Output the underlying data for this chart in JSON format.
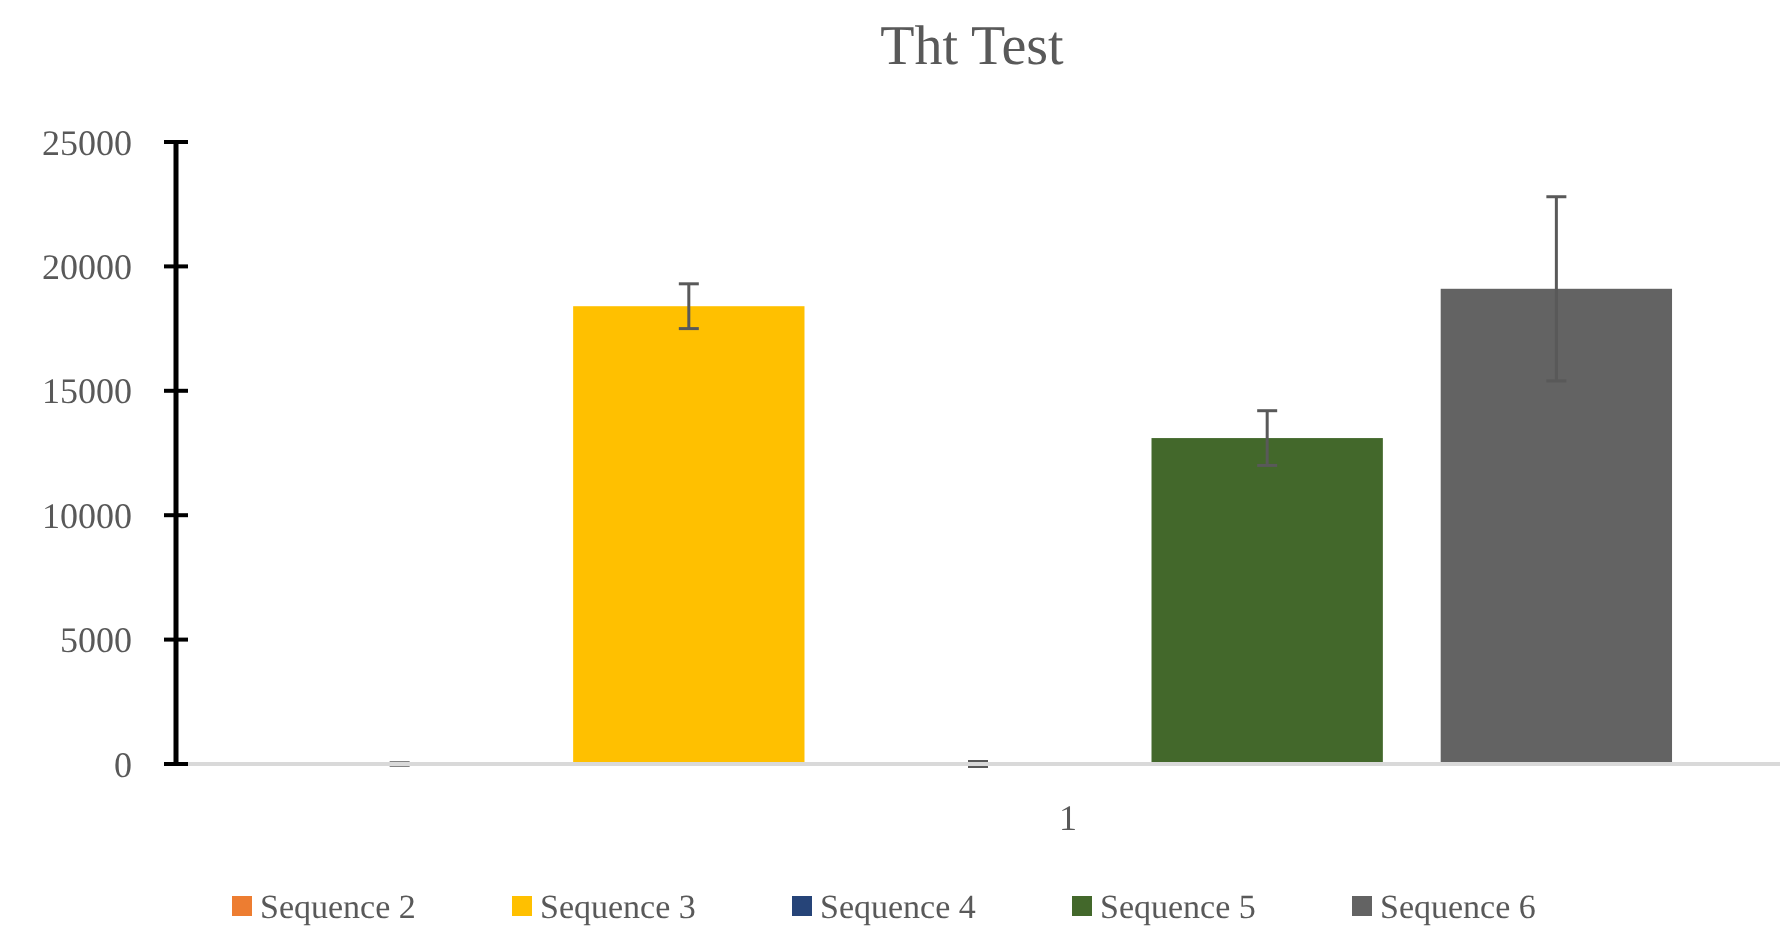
{
  "chart_data": {
    "type": "bar",
    "title": "Tht Test",
    "categories": [
      "1"
    ],
    "series": [
      {
        "name": "Sequence 2",
        "color": "#ed7d31",
        "values": [
          0
        ],
        "errors": [
          50
        ]
      },
      {
        "name": "Sequence 3",
        "color": "#ffc000",
        "values": [
          18400
        ],
        "errors": [
          900
        ]
      },
      {
        "name": "Sequence 4",
        "color": "#264478",
        "values": [
          0
        ],
        "errors": [
          100
        ]
      },
      {
        "name": "Sequence 5",
        "color": "#43682b",
        "values": [
          13100
        ],
        "errors": [
          1100
        ]
      },
      {
        "name": "Sequence 6",
        "color": "#636363",
        "values": [
          19100
        ],
        "errors": [
          3700
        ]
      }
    ],
    "ylim": [
      0,
      25000
    ],
    "yticks": [
      0,
      5000,
      10000,
      15000,
      20000,
      25000
    ],
    "grid": false,
    "legend": "bottom"
  }
}
